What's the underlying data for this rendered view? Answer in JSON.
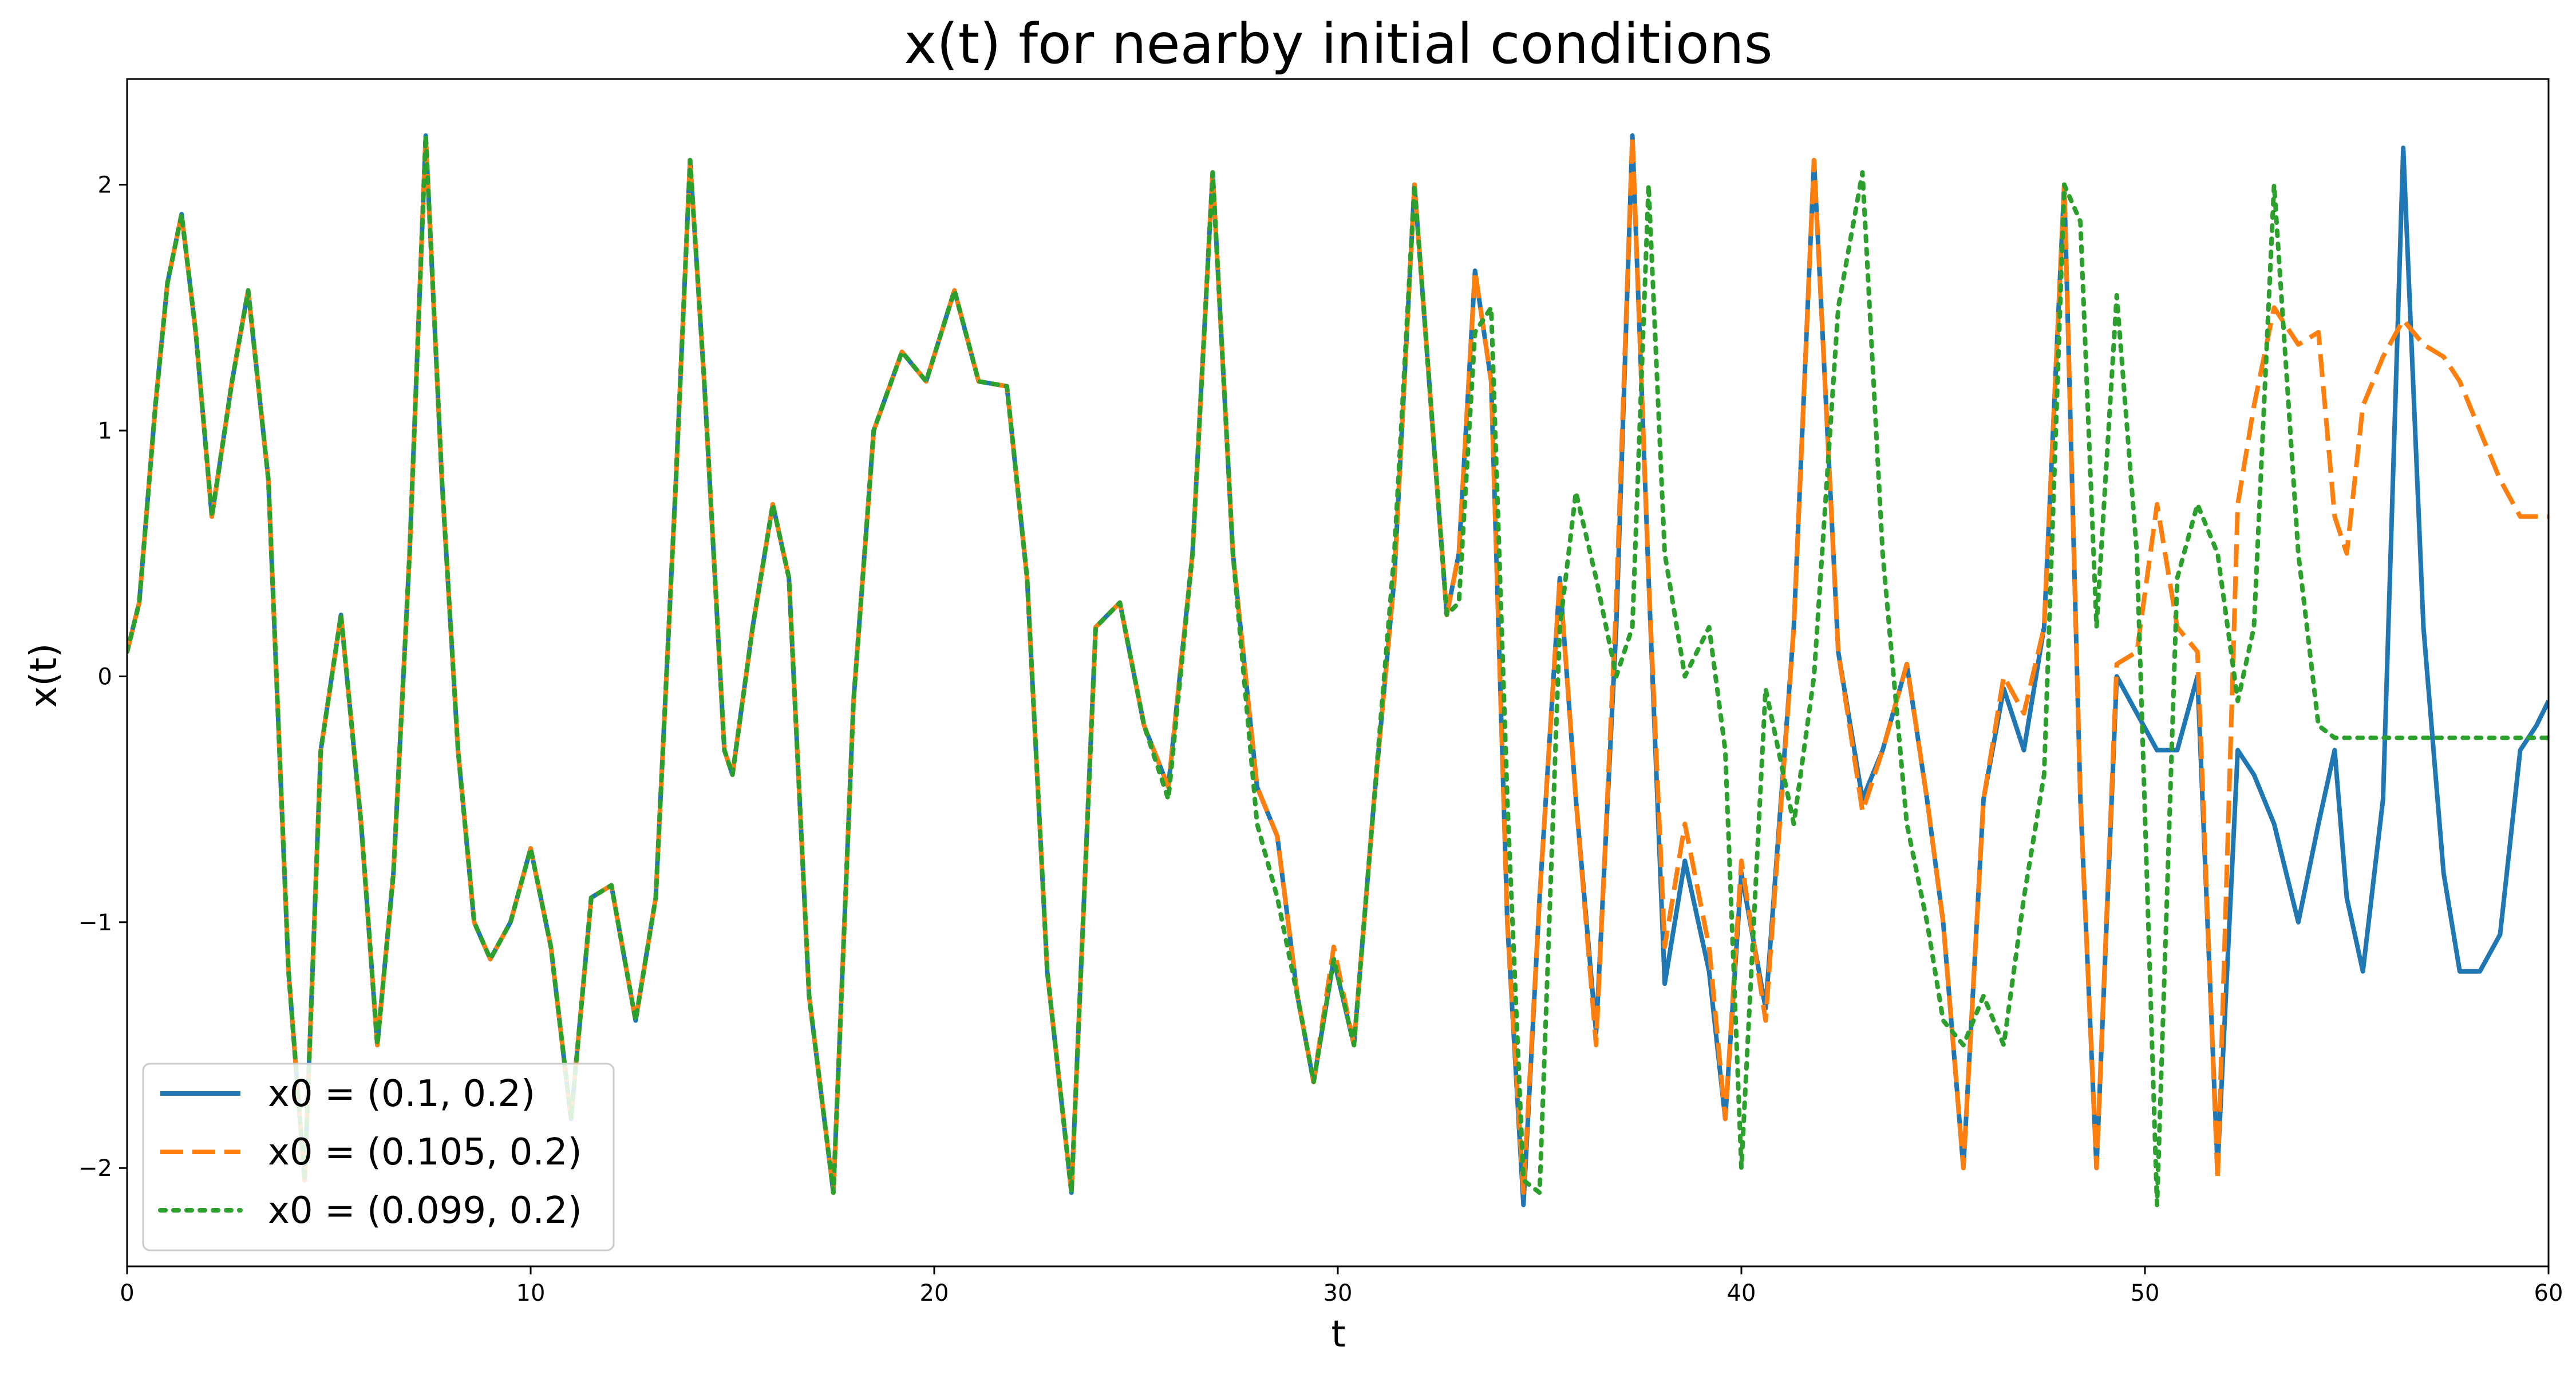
{
  "chart_data": {
    "type": "line",
    "title": "x(t) for nearby initial conditions",
    "xlabel": "t",
    "ylabel": "x(t)",
    "xlim": [
      0,
      60
    ],
    "ylim": [
      -2.4,
      2.43
    ],
    "xticks": [
      0,
      10,
      20,
      30,
      40,
      50,
      60
    ],
    "yticks": [
      -2,
      -1,
      0,
      1,
      2
    ],
    "xtick_labels": [
      "0",
      "10",
      "20",
      "30",
      "40",
      "50",
      "60"
    ],
    "ytick_labels": [
      "−2",
      "−1",
      "0",
      "1",
      "2"
    ],
    "grid": false,
    "legend_position": "lower-left",
    "series": [
      {
        "name": "x0 = (0.1, 0.2)",
        "color": "#1f77b4",
        "style": "solid",
        "x": [
          0,
          0.3,
          0.7,
          1.0,
          1.35,
          1.7,
          2.1,
          2.6,
          3.0,
          3.5,
          4.0,
          4.4,
          4.8,
          5.3,
          5.8,
          6.2,
          6.6,
          7.0,
          7.4,
          7.8,
          8.2,
          8.6,
          9.0,
          9.5,
          10.0,
          10.5,
          11.0,
          11.5,
          12.0,
          12.6,
          13.1,
          13.6,
          13.95,
          14.3,
          14.8,
          15.0,
          15.5,
          16.0,
          16.4,
          16.9,
          17.5,
          18.0,
          18.5,
          19.2,
          19.8,
          20.5,
          21.1,
          21.8,
          22.3,
          22.8,
          23.4,
          24.0,
          24.6,
          25.2,
          25.8,
          26.4,
          26.9,
          27.4,
          28.0,
          28.5,
          29.0,
          29.4,
          29.9,
          30.4,
          30.9,
          31.4,
          31.9,
          32.4,
          32.7,
          33.0,
          33.4,
          33.8,
          34.2,
          34.6,
          35.0,
          35.5,
          35.9,
          36.4,
          36.9,
          37.3,
          37.7,
          38.1,
          38.6,
          39.2,
          39.6,
          40.0,
          40.6,
          41.3,
          41.8,
          42.4,
          43.0,
          43.5,
          44.1,
          44.6,
          45.0,
          45.5,
          46.0,
          46.5,
          47.0,
          47.5,
          48.0,
          48.4,
          48.8,
          49.3,
          49.8,
          50.3,
          50.8,
          51.3,
          51.8,
          52.3,
          52.7,
          53.2,
          53.8,
          54.3,
          54.7,
          55.0,
          55.4,
          55.9,
          56.4,
          56.9,
          57.4,
          57.8,
          58.3,
          58.8,
          59.3,
          59.7,
          60.0
        ],
        "y": [
          0.1,
          0.3,
          1.1,
          1.6,
          1.88,
          1.4,
          0.65,
          1.2,
          1.57,
          0.8,
          -1.2,
          -2.05,
          -0.3,
          0.25,
          -0.6,
          -1.5,
          -0.8,
          0.5,
          2.2,
          0.8,
          -0.3,
          -1.0,
          -1.15,
          -1.0,
          -0.7,
          -1.1,
          -1.8,
          -0.9,
          -0.85,
          -1.4,
          -0.9,
          0.8,
          2.1,
          1.2,
          -0.3,
          -0.4,
          0.2,
          0.7,
          0.4,
          -1.3,
          -2.1,
          -0.1,
          1.0,
          1.32,
          1.2,
          1.57,
          1.2,
          1.18,
          0.4,
          -1.2,
          -2.1,
          0.2,
          0.3,
          -0.2,
          -0.45,
          0.5,
          2.05,
          0.5,
          -0.45,
          -0.65,
          -1.3,
          -1.65,
          -1.15,
          -1.5,
          -0.5,
          0.4,
          2.0,
          0.9,
          0.25,
          0.5,
          1.65,
          1.2,
          -1.0,
          -2.15,
          -0.9,
          0.4,
          -0.5,
          -1.45,
          0.2,
          2.2,
          0.4,
          -1.25,
          -0.75,
          -1.2,
          -1.8,
          -0.8,
          -1.35,
          0.2,
          2.1,
          0.1,
          -0.5,
          -0.3,
          0.05,
          -0.5,
          -1.0,
          -2.0,
          -0.5,
          -0.05,
          -0.3,
          0.2,
          2.0,
          -0.5,
          -2.0,
          0.0,
          -0.15,
          -0.3,
          -0.3,
          0.0,
          -2.0,
          -0.3,
          -0.4,
          -0.6,
          -1.0,
          -0.6,
          -0.3,
          -0.9,
          -1.2,
          -0.5,
          2.15,
          0.2,
          -0.8,
          -1.2,
          -1.2,
          -1.05,
          -0.3,
          -0.2,
          -0.1
        ]
      },
      {
        "name": "x0 = (0.105, 0.2)",
        "color": "#ff7f0e",
        "style": "dashed",
        "x": [
          0,
          0.3,
          0.7,
          1.0,
          1.35,
          1.7,
          2.1,
          2.6,
          3.0,
          3.5,
          4.0,
          4.4,
          4.8,
          5.3,
          5.8,
          6.2,
          6.6,
          7.0,
          7.4,
          7.8,
          8.2,
          8.6,
          9.0,
          9.5,
          10.0,
          10.5,
          11.0,
          11.5,
          12.0,
          12.6,
          13.1,
          13.6,
          13.95,
          14.3,
          14.8,
          15.0,
          15.5,
          16.0,
          16.4,
          16.9,
          17.5,
          18.0,
          18.5,
          19.2,
          19.8,
          20.5,
          21.1,
          21.8,
          22.3,
          22.8,
          23.4,
          24.0,
          24.6,
          25.2,
          25.8,
          26.4,
          26.9,
          27.4,
          28.0,
          28.5,
          29.0,
          29.4,
          29.9,
          30.4,
          30.9,
          31.4,
          31.9,
          32.4,
          32.7,
          33.0,
          33.4,
          33.8,
          34.2,
          34.6,
          35.0,
          35.5,
          35.9,
          36.4,
          36.9,
          37.3,
          37.7,
          38.1,
          38.6,
          39.2,
          39.6,
          40.0,
          40.6,
          41.3,
          41.8,
          42.4,
          43.0,
          43.5,
          44.1,
          44.6,
          45.0,
          45.5,
          46.0,
          46.5,
          47.0,
          47.5,
          48.0,
          48.4,
          48.8,
          49.3,
          49.8,
          50.3,
          50.8,
          51.3,
          51.8,
          52.3,
          52.7,
          53.2,
          53.8,
          54.3,
          54.7,
          55.0,
          55.4,
          55.9,
          56.4,
          56.9,
          57.4,
          57.8,
          58.3,
          58.8,
          59.3,
          59.7,
          60.0
        ],
        "y": [
          0.1,
          0.3,
          1.1,
          1.6,
          1.88,
          1.4,
          0.65,
          1.2,
          1.57,
          0.8,
          -1.2,
          -2.05,
          -0.3,
          0.25,
          -0.6,
          -1.5,
          -0.8,
          0.5,
          2.2,
          0.8,
          -0.3,
          -1.0,
          -1.15,
          -1.0,
          -0.7,
          -1.1,
          -1.8,
          -0.9,
          -0.85,
          -1.4,
          -0.9,
          0.8,
          2.1,
          1.2,
          -0.3,
          -0.4,
          0.2,
          0.7,
          0.4,
          -1.3,
          -2.1,
          -0.1,
          1.0,
          1.32,
          1.2,
          1.57,
          1.2,
          1.18,
          0.4,
          -1.2,
          -2.1,
          0.2,
          0.3,
          -0.2,
          -0.45,
          0.5,
          2.05,
          0.5,
          -0.45,
          -0.65,
          -1.3,
          -1.65,
          -1.1,
          -1.5,
          -0.5,
          0.4,
          2.0,
          0.9,
          0.25,
          0.5,
          1.65,
          1.2,
          -1.0,
          -2.1,
          -0.9,
          0.4,
          -0.5,
          -1.5,
          0.3,
          2.2,
          0.4,
          -1.1,
          -0.6,
          -1.1,
          -1.8,
          -0.75,
          -1.4,
          0.2,
          2.1,
          0.1,
          -0.55,
          -0.3,
          0.05,
          -0.5,
          -1.0,
          -2.0,
          -0.5,
          0.0,
          -0.15,
          0.2,
          2.0,
          -0.5,
          -2.0,
          0.05,
          0.1,
          0.7,
          0.2,
          0.1,
          -2.05,
          0.7,
          1.1,
          1.5,
          1.35,
          1.4,
          0.65,
          0.5,
          1.1,
          1.3,
          1.45,
          1.35,
          1.3,
          1.2,
          1.0,
          0.8,
          0.65,
          0.65,
          0.65
        ]
      },
      {
        "name": "x0 = (0.099, 0.2)",
        "color": "#2ca02c",
        "style": "dotted",
        "x": [
          0,
          0.3,
          0.7,
          1.0,
          1.35,
          1.7,
          2.1,
          2.6,
          3.0,
          3.5,
          4.0,
          4.4,
          4.8,
          5.3,
          5.8,
          6.2,
          6.6,
          7.0,
          7.4,
          7.8,
          8.2,
          8.6,
          9.0,
          9.5,
          10.0,
          10.5,
          11.0,
          11.5,
          12.0,
          12.6,
          13.1,
          13.6,
          13.95,
          14.3,
          14.8,
          15.0,
          15.5,
          16.0,
          16.4,
          16.9,
          17.5,
          18.0,
          18.5,
          19.2,
          19.8,
          20.5,
          21.1,
          21.8,
          22.3,
          22.8,
          23.4,
          24.0,
          24.6,
          25.2,
          25.8,
          26.4,
          26.9,
          27.4,
          28.0,
          28.5,
          29.0,
          29.4,
          29.9,
          30.4,
          30.9,
          31.4,
          31.9,
          32.4,
          32.7,
          33.0,
          33.4,
          33.8,
          34.2,
          34.6,
          35.0,
          35.5,
          35.9,
          36.4,
          36.9,
          37.3,
          37.7,
          38.1,
          38.6,
          39.2,
          39.6,
          40.0,
          40.6,
          41.3,
          41.8,
          42.4,
          43.0,
          43.5,
          44.1,
          44.6,
          45.0,
          45.5,
          46.0,
          46.5,
          47.0,
          47.5,
          48.0,
          48.4,
          48.8,
          49.3,
          49.8,
          50.3,
          50.8,
          51.3,
          51.8,
          52.3,
          52.7,
          53.2,
          53.8,
          54.3,
          54.7,
          55.0,
          55.4,
          55.9,
          56.4,
          56.9,
          57.4,
          57.8,
          58.3,
          58.8,
          59.3,
          59.7,
          60.0
        ],
        "y": [
          0.1,
          0.3,
          1.1,
          1.6,
          1.88,
          1.4,
          0.65,
          1.2,
          1.57,
          0.8,
          -1.2,
          -2.05,
          -0.3,
          0.25,
          -0.6,
          -1.5,
          -0.8,
          0.5,
          2.2,
          0.8,
          -0.3,
          -1.0,
          -1.15,
          -1.0,
          -0.7,
          -1.1,
          -1.8,
          -0.9,
          -0.85,
          -1.4,
          -0.9,
          0.8,
          2.1,
          1.2,
          -0.3,
          -0.4,
          0.2,
          0.7,
          0.4,
          -1.3,
          -2.1,
          -0.1,
          1.0,
          1.32,
          1.2,
          1.57,
          1.2,
          1.18,
          0.4,
          -1.2,
          -2.1,
          0.2,
          0.3,
          -0.2,
          -0.5,
          0.5,
          2.05,
          0.5,
          -0.6,
          -0.9,
          -1.3,
          -1.65,
          -1.15,
          -1.5,
          -0.5,
          0.5,
          2.0,
          0.9,
          0.25,
          0.3,
          1.4,
          1.5,
          -0.5,
          -2.05,
          -2.1,
          0.2,
          0.75,
          0.4,
          0.0,
          0.2,
          2.0,
          0.5,
          0.0,
          0.2,
          -0.3,
          -2.0,
          -0.05,
          -0.6,
          0.0,
          1.5,
          2.05,
          0.5,
          -0.6,
          -1.0,
          -1.4,
          -1.5,
          -1.3,
          -1.5,
          -0.9,
          -0.4,
          2.0,
          1.85,
          0.2,
          1.55,
          0.5,
          -2.15,
          0.4,
          0.7,
          0.5,
          -0.1,
          0.2,
          2.0,
          0.5,
          -0.2,
          -0.25,
          -0.25,
          -0.25,
          -0.25,
          -0.25,
          -0.25,
          -0.25,
          -0.25,
          -0.25,
          -0.25,
          -0.25,
          -0.25,
          -0.25
        ]
      }
    ]
  }
}
